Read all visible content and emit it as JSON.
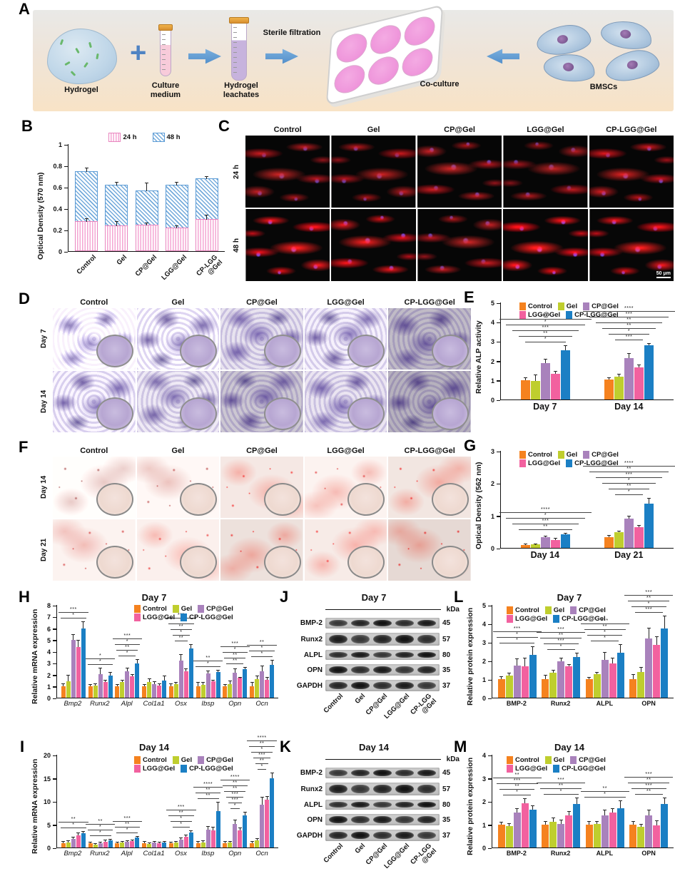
{
  "groups": {
    "names": [
      "Control",
      "Gel",
      "CP@Gel",
      "LGG@Gel",
      "CP-LGG@Gel"
    ],
    "colors": [
      "#F5821F",
      "#BFCE2E",
      "#A982BC",
      "#F2619F",
      "#1B7FC4"
    ]
  },
  "panelA": {
    "label": "A",
    "hydrogel_label": "Hydrogel",
    "plus": "+",
    "culture_medium_label": "Culture\nmedium",
    "sterile_filtration_label": "Sterile filtration",
    "hydrogel_leachates_label": "Hydrogel\nleachates",
    "coculture_label": "Co-culture",
    "bmscs_label": "BMSCs"
  },
  "panelB": {
    "label": "B"
  },
  "panelC": {
    "label": "C",
    "columns": [
      "Control",
      "Gel",
      "CP@Gel",
      "LGG@Gel",
      "CP-LGG@Gel"
    ],
    "rows": [
      "24 h",
      "48 h"
    ],
    "scale_bar": "50 μm"
  },
  "panelD": {
    "label": "D",
    "columns": [
      "Control",
      "Gel",
      "CP@Gel",
      "LGG@Gel",
      "CP-LGG@Gel"
    ],
    "rows": [
      "Day 7",
      "Day 14"
    ]
  },
  "panelE": {
    "label": "E"
  },
  "panelF": {
    "label": "F",
    "columns": [
      "Control",
      "Gel",
      "CP@Gel",
      "LGG@Gel",
      "CP-LGG@Gel"
    ],
    "rows": [
      "Day 14",
      "Day 21"
    ]
  },
  "panelG": {
    "label": "G"
  },
  "panelH": {
    "label": "H"
  },
  "panelI": {
    "label": "I"
  },
  "panelJ": {
    "label": "J",
    "title": "Day 7",
    "kda": "kDa",
    "rows": [
      {
        "protein": "BMP-2",
        "kda": "45"
      },
      {
        "protein": "Runx2",
        "kda": "57"
      },
      {
        "protein": "ALPL",
        "kda": "80"
      },
      {
        "protein": "OPN",
        "kda": "35"
      },
      {
        "protein": "GAPDH",
        "kda": "37"
      }
    ],
    "lanes": [
      "Control",
      "Gel",
      "CP@Gel",
      "LGG@Gel",
      "CP-LGG\n@Gel"
    ]
  },
  "panelK": {
    "label": "K",
    "title": "Day 14",
    "kda": "kDa",
    "rows": [
      {
        "protein": "BMP-2",
        "kda": "45"
      },
      {
        "protein": "Runx2",
        "kda": "57"
      },
      {
        "protein": "ALPL",
        "kda": "80"
      },
      {
        "protein": "OPN",
        "kda": "35"
      },
      {
        "protein": "GAPDH",
        "kda": "37"
      }
    ],
    "lanes": [
      "Control",
      "Gel",
      "CP@Gel",
      "LGG@Gel",
      "CP-LGG\n@Gel"
    ]
  },
  "panelL": {
    "label": "L"
  },
  "panelM": {
    "label": "M"
  },
  "chart_data": [
    {
      "id": "B",
      "type": "bar",
      "title": "",
      "ylabel": "Optical Density (570 nm)",
      "ylim": [
        0,
        1
      ],
      "yticks": [
        0,
        0.2,
        0.4,
        0.6,
        0.8,
        1
      ],
      "categories": [
        "Control",
        "Gel",
        "CP@Gel",
        "LGG@Gel",
        "CP-LGG\n@Gel"
      ],
      "legend": [
        "24 h",
        "48 h"
      ],
      "series": [
        {
          "name": "24 h",
          "values": [
            0.28,
            0.24,
            0.25,
            0.22,
            0.3
          ],
          "errors": [
            0.03,
            0.04,
            0.02,
            0.02,
            0.04
          ]
        },
        {
          "name": "48 h",
          "values": [
            0.75,
            0.62,
            0.57,
            0.62,
            0.68
          ],
          "errors": [
            0.03,
            0.03,
            0.07,
            0.03,
            0.02
          ]
        }
      ]
    },
    {
      "id": "E",
      "type": "bar",
      "title": "",
      "ylabel": "Relative ALP activity",
      "ylim": [
        0,
        5
      ],
      "yticks": [
        0,
        1,
        2,
        3,
        4,
        5
      ],
      "categories": [
        "Day 7",
        "Day 14"
      ],
      "series": [
        {
          "name": "Control",
          "values": [
            1.0,
            1.02
          ],
          "errors": [
            0.1,
            0.07
          ]
        },
        {
          "name": "Gel",
          "values": [
            0.97,
            1.17
          ],
          "errors": [
            0.28,
            0.12
          ]
        },
        {
          "name": "CP@Gel",
          "values": [
            1.87,
            2.15
          ],
          "errors": [
            0.2,
            0.22
          ]
        },
        {
          "name": "LGG@Gel",
          "values": [
            1.32,
            1.65
          ],
          "errors": [
            0.12,
            0.12
          ]
        },
        {
          "name": "CP-LGG@Gel",
          "values": [
            2.55,
            2.8
          ],
          "errors": [
            0.2,
            0.08
          ]
        }
      ],
      "sig": [
        [
          "****",
          "*",
          "***",
          "**",
          "*"
        ],
        [
          "****",
          "***",
          "**",
          "**",
          "*",
          "***"
        ]
      ]
    },
    {
      "id": "G",
      "type": "bar",
      "title": "",
      "ylabel": "Optical Density (562 nm)",
      "ylim": [
        0,
        3
      ],
      "yticks": [
        0,
        1,
        2,
        3
      ],
      "categories": [
        "Day 14",
        "Day 21"
      ],
      "series": [
        {
          "name": "Control",
          "values": [
            0.08,
            0.34
          ],
          "errors": [
            0.02,
            0.03
          ]
        },
        {
          "name": "Gel",
          "values": [
            0.1,
            0.48
          ],
          "errors": [
            0.02,
            0.03
          ]
        },
        {
          "name": "CP@Gel",
          "values": [
            0.33,
            0.9
          ],
          "errors": [
            0.03,
            0.08
          ]
        },
        {
          "name": "LGG@Gel",
          "values": [
            0.24,
            0.63
          ],
          "errors": [
            0.04,
            0.05
          ]
        },
        {
          "name": "CP-LGG@Gel",
          "values": [
            0.42,
            1.36
          ],
          "errors": [
            0.03,
            0.17
          ]
        }
      ],
      "sig": [
        [
          "****",
          "*",
          "***",
          "**"
        ],
        [
          "****",
          "**",
          "***",
          "*",
          "**",
          "*"
        ]
      ]
    },
    {
      "id": "H",
      "type": "bar",
      "title": "Day 7",
      "ylabel": "Relative mRNA expression",
      "ylim": [
        0,
        8
      ],
      "yticks": [
        0,
        1,
        2,
        3,
        4,
        5,
        6,
        7,
        8
      ],
      "categories": [
        "Bmp2",
        "Runx2",
        "Alpl",
        "Col1a1",
        "Osx",
        "Ibsp",
        "Opn",
        "Ocn"
      ],
      "series": [
        {
          "name": "Control",
          "values": [
            1.0,
            1.0,
            1.0,
            1.0,
            1.0,
            1.0,
            1.0,
            1.0
          ],
          "errors": [
            0.15,
            0.12,
            0.12,
            0.12,
            0.15,
            0.3,
            0.1,
            0.3
          ]
        },
        {
          "name": "Gel",
          "values": [
            1.4,
            1.05,
            1.35,
            1.38,
            1.2,
            1.1,
            1.15,
            1.6
          ],
          "errors": [
            0.5,
            0.15,
            0.15,
            0.25,
            0.1,
            0.2,
            0.25,
            0.25
          ]
        },
        {
          "name": "CP@Gel",
          "values": [
            5.0,
            2.05,
            2.25,
            1.15,
            3.2,
            2.1,
            2.15,
            2.3
          ],
          "errors": [
            0.4,
            0.45,
            0.3,
            0.2,
            0.5,
            0.2,
            0.3,
            0.4
          ]
        },
        {
          "name": "LGG@Gel",
          "values": [
            4.4,
            1.35,
            1.85,
            1.07,
            2.3,
            1.4,
            1.7,
            1.55
          ],
          "errors": [
            0.5,
            0.15,
            0.1,
            0.1,
            0.15,
            0.1,
            0.05,
            0.2
          ]
        },
        {
          "name": "CP-LGG@Gel",
          "values": [
            5.95,
            1.9,
            2.97,
            1.5,
            4.25,
            2.2,
            2.45,
            2.85
          ],
          "errors": [
            0.6,
            0.25,
            0.3,
            0.35,
            0.3,
            0.15,
            0.15,
            0.35
          ]
        }
      ],
      "sig": [
        [
          "***",
          "*"
        ],
        [
          "*",
          "*"
        ],
        [
          "***",
          "*",
          "**",
          "*"
        ],
        [],
        [
          "***",
          "*",
          "**",
          "*",
          "**"
        ],
        [
          "**",
          "*"
        ],
        [
          "***",
          "*",
          "**",
          "**"
        ],
        [
          "**",
          "*",
          "*"
        ]
      ]
    },
    {
      "id": "I",
      "type": "bar",
      "title": "Day 14",
      "ylabel": "Relative mRNA expression",
      "ylim": [
        0,
        20
      ],
      "yticks": [
        0,
        5,
        10,
        15,
        20
      ],
      "categories": [
        "Bmp2",
        "Runx2",
        "Alpl",
        "Col1a1",
        "Osx",
        "Ibsp",
        "Opn",
        "Ocn"
      ],
      "series": [
        {
          "name": "Control",
          "values": [
            1.0,
            1.0,
            1.0,
            1.0,
            1.0,
            1.0,
            1.0,
            1.0
          ],
          "errors": [
            0.25,
            0.12,
            0.1,
            0.2,
            0.12,
            0.25,
            0.2,
            0.25
          ]
        },
        {
          "name": "Gel",
          "values": [
            1.1,
            0.65,
            1.05,
            0.75,
            1.05,
            1.15,
            1.05,
            1.5
          ],
          "errors": [
            0.3,
            0.1,
            0.15,
            0.15,
            0.2,
            0.3,
            0.2,
            0.4
          ]
        },
        {
          "name": "CP@Gel",
          "values": [
            1.9,
            1.0,
            1.3,
            1.1,
            1.75,
            3.9,
            5.1,
            9.3
          ],
          "errors": [
            0.3,
            0.15,
            0.15,
            0.15,
            0.25,
            0.6,
            0.8,
            1.5
          ]
        },
        {
          "name": "LGG@Gel",
          "values": [
            2.6,
            1.3,
            1.35,
            1.0,
            2.25,
            3.7,
            3.7,
            10.3
          ],
          "errors": [
            0.5,
            0.2,
            0.2,
            0.15,
            0.3,
            0.6,
            0.4,
            0.6
          ]
        },
        {
          "name": "CP-LGG@Gel",
          "values": [
            3.1,
            1.55,
            2.1,
            1.1,
            3.2,
            7.9,
            7.0,
            15.0
          ],
          "errors": [
            0.3,
            0.15,
            0.25,
            0.15,
            0.4,
            1.8,
            0.6,
            1.0
          ]
        }
      ],
      "sig": [
        [
          "**",
          "*"
        ],
        [
          "**",
          "*",
          "*"
        ],
        [
          "***",
          "**",
          "*"
        ],
        [],
        [
          "***",
          "**",
          "*",
          "*"
        ],
        [
          "****",
          "**",
          "**"
        ],
        [
          "****",
          "**",
          "**",
          "***",
          "***",
          "*"
        ],
        [
          "****",
          "**",
          "*",
          "***",
          "**",
          "*"
        ]
      ]
    },
    {
      "id": "L",
      "type": "bar",
      "title": "Day 7",
      "ylabel": "Relative protein expression",
      "ylim": [
        0,
        5
      ],
      "yticks": [
        0,
        1,
        2,
        3,
        4,
        5
      ],
      "categories": [
        "BMP-2",
        "Runx2",
        "ALPL",
        "OPN"
      ],
      "series": [
        {
          "name": "Control",
          "values": [
            1.0,
            1.0,
            1.0,
            1.0
          ],
          "errors": [
            0.12,
            0.2,
            0.07,
            0.25
          ]
        },
        {
          "name": "Gel",
          "values": [
            1.2,
            1.33,
            1.28,
            1.4
          ],
          "errors": [
            0.1,
            0.15,
            0.07,
            0.2
          ]
        },
        {
          "name": "CP@Gel",
          "values": [
            1.72,
            1.98,
            2.02,
            3.2
          ],
          "errors": [
            0.35,
            0.15,
            0.4,
            0.55
          ]
        },
        {
          "name": "LGG@Gel",
          "values": [
            1.7,
            1.68,
            1.83,
            2.83
          ],
          "errors": [
            0.4,
            0.1,
            0.3,
            0.45
          ]
        },
        {
          "name": "CP-LGG@Gel",
          "values": [
            2.32,
            2.18,
            2.43,
            3.73
          ],
          "errors": [
            0.4,
            0.2,
            0.4,
            0.65
          ]
        }
      ],
      "sig": [
        [
          "***",
          "*",
          "*"
        ],
        [
          "***",
          "**",
          "***",
          "*"
        ],
        [
          "***",
          "**",
          "*",
          "*"
        ],
        [
          "***",
          "**",
          "*",
          "***"
        ]
      ]
    },
    {
      "id": "M",
      "type": "bar",
      "title": "Day 14",
      "ylabel": "Relative protein expression",
      "ylim": [
        0,
        4
      ],
      "yticks": [
        0,
        1,
        2,
        3,
        4
      ],
      "categories": [
        "BMP-2",
        "Runx2",
        "ALPL",
        "OPN"
      ],
      "series": [
        {
          "name": "Control",
          "values": [
            1.0,
            1.0,
            1.0,
            1.0
          ],
          "errors": [
            0.07,
            0.12,
            0.1,
            0.12
          ]
        },
        {
          "name": "Gel",
          "values": [
            0.93,
            1.12,
            1.02,
            0.88
          ],
          "errors": [
            0.1,
            0.15,
            0.1,
            0.12
          ]
        },
        {
          "name": "CP@Gel",
          "values": [
            1.5,
            1.02,
            1.4,
            1.4
          ],
          "errors": [
            0.15,
            0.15,
            0.2,
            0.2
          ]
        },
        {
          "name": "LGG@Gel",
          "values": [
            1.9,
            1.4,
            1.5,
            0.95
          ],
          "errors": [
            0.2,
            0.15,
            0.15,
            0.18
          ]
        },
        {
          "name": "CP-LGG@Gel",
          "values": [
            1.62,
            1.88,
            1.7,
            1.88
          ],
          "errors": [
            0.15,
            0.25,
            0.3,
            0.25
          ]
        }
      ],
      "sig": [
        [
          "**",
          "***",
          "**",
          "*"
        ],
        [
          "***",
          "**",
          "*"
        ],
        [
          "**",
          "*"
        ],
        [
          "***",
          "**",
          "***",
          "**"
        ]
      ]
    }
  ]
}
